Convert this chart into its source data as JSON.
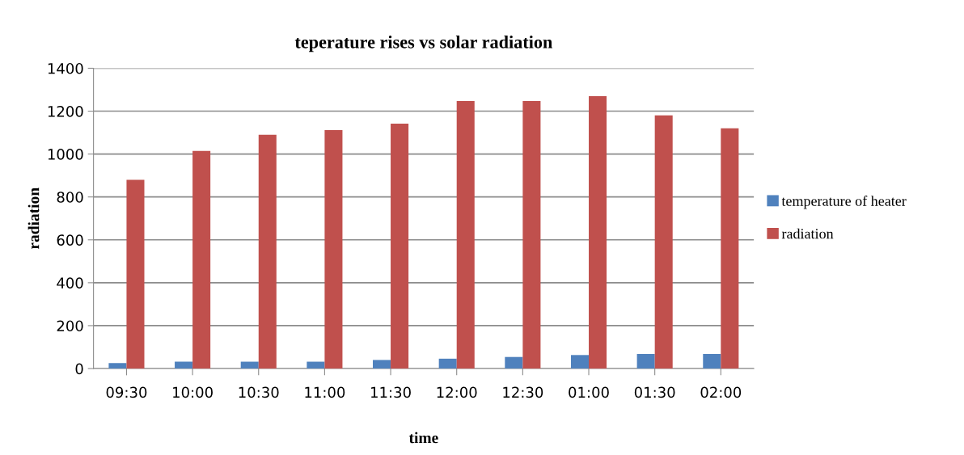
{
  "chart_data": {
    "type": "bar",
    "title": "teperature rises vs solar radiation",
    "xlabel": "time",
    "ylabel": "radiation",
    "categories": [
      "09:30",
      "10:00",
      "10:30",
      "11:00",
      "11:30",
      "12:00",
      "12:30",
      "01:00",
      "01:30",
      "02:00"
    ],
    "series": [
      {
        "name": "temperature of heater",
        "color": "#4f81bd",
        "values": [
          26,
          32,
          32,
          32,
          40,
          46,
          54,
          63,
          68,
          68
        ]
      },
      {
        "name": "radiation",
        "color": "#c0504d",
        "values": [
          880,
          1015,
          1090,
          1112,
          1142,
          1247,
          1247,
          1270,
          1180,
          1120
        ]
      }
    ],
    "ylim": [
      0,
      1400
    ],
    "yticks": [
      0,
      200,
      400,
      600,
      800,
      1000,
      1200,
      1400
    ],
    "grid": "y",
    "legend": "right"
  }
}
